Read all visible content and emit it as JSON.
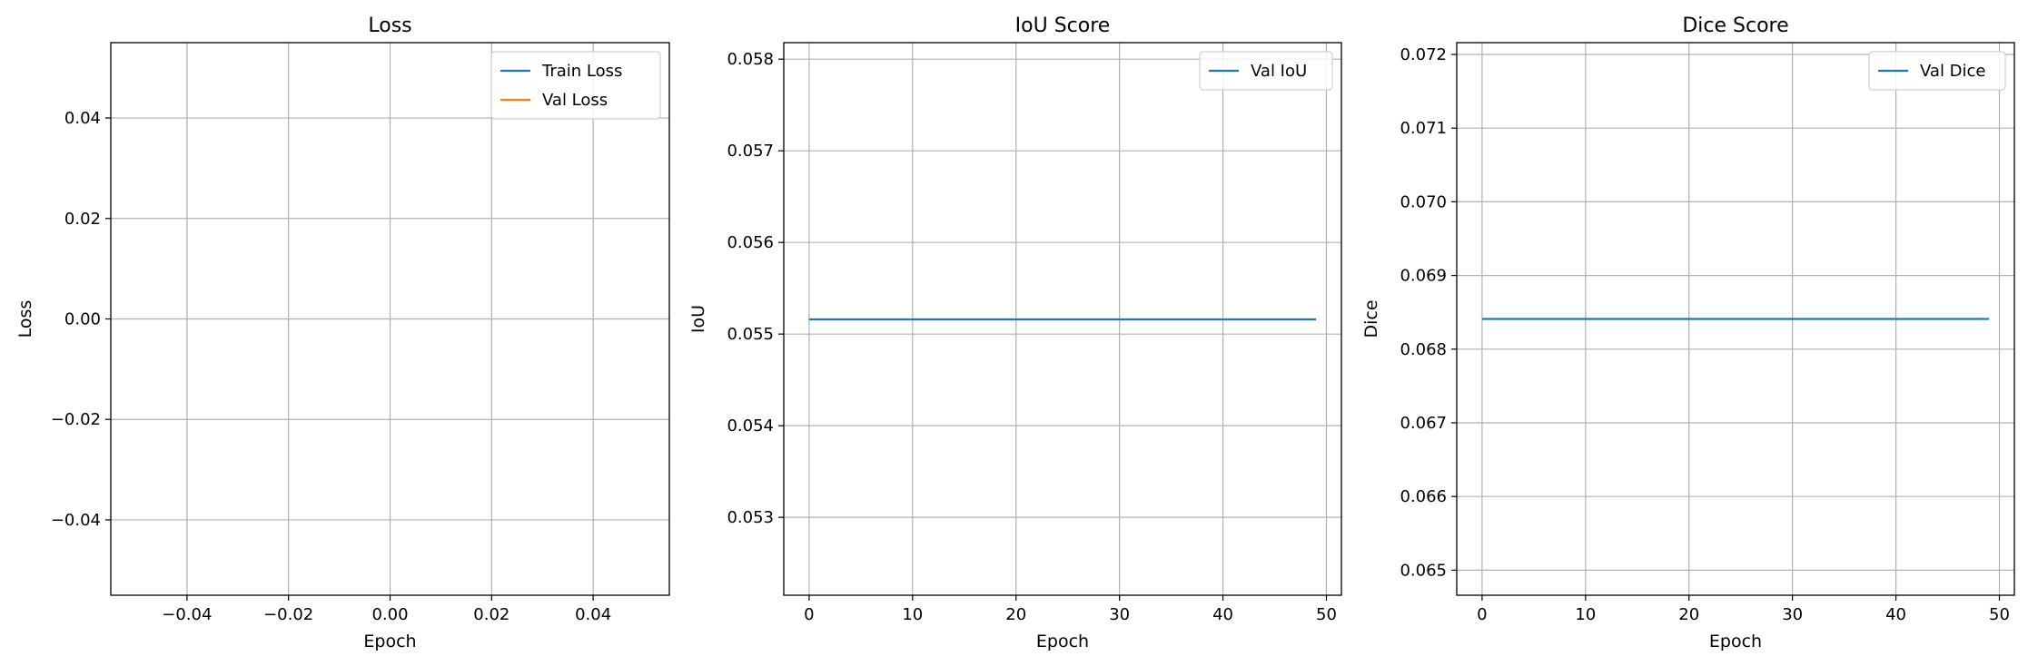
{
  "chart_data": [
    {
      "type": "line",
      "title": "Loss",
      "xlabel": "Epoch",
      "ylabel": "Loss",
      "xlim": [
        -0.055,
        0.055
      ],
      "ylim": [
        -0.055,
        0.055
      ],
      "xticks": [
        -0.04,
        -0.02,
        0.0,
        0.02,
        0.04
      ],
      "xtick_labels": [
        "−0.04",
        "−0.02",
        "0.00",
        "0.02",
        "0.04"
      ],
      "yticks": [
        -0.04,
        -0.02,
        0.0,
        0.02,
        0.04
      ],
      "ytick_labels": [
        "−0.04",
        "−0.02",
        "0.00",
        "0.02",
        "0.04"
      ],
      "grid": true,
      "legend_position": "top-right",
      "series": [
        {
          "name": "Train Loss",
          "color": "#1f77b4",
          "x": [],
          "y": []
        },
        {
          "name": "Val Loss",
          "color": "#ff7f0e",
          "x": [],
          "y": []
        }
      ]
    },
    {
      "type": "line",
      "title": "IoU Score",
      "xlabel": "Epoch",
      "ylabel": "IoU",
      "xlim": [
        -2.45,
        51.45
      ],
      "ylim": [
        0.05215,
        0.05818
      ],
      "xticks": [
        0,
        10,
        20,
        30,
        40,
        50
      ],
      "xtick_labels": [
        "0",
        "10",
        "20",
        "30",
        "40",
        "50"
      ],
      "yticks": [
        0.053,
        0.054,
        0.055,
        0.056,
        0.057,
        0.058
      ],
      "ytick_labels": [
        "0.053",
        "0.054",
        "0.055",
        "0.056",
        "0.057",
        "0.058"
      ],
      "grid": true,
      "legend_position": "top-right",
      "series": [
        {
          "name": "Val IoU",
          "color": "#1f77b4",
          "x": [
            0,
            49
          ],
          "y": [
            0.05516,
            0.05516
          ]
        }
      ]
    },
    {
      "type": "line",
      "title": "Dice Score",
      "xlabel": "Epoch",
      "ylabel": "Dice",
      "xlim": [
        -2.45,
        51.45
      ],
      "ylim": [
        0.06466,
        0.07216
      ],
      "xticks": [
        0,
        10,
        20,
        30,
        40,
        50
      ],
      "xtick_labels": [
        "0",
        "10",
        "20",
        "30",
        "40",
        "50"
      ],
      "yticks": [
        0.065,
        0.066,
        0.067,
        0.068,
        0.069,
        0.07,
        0.071,
        0.072
      ],
      "ytick_labels": [
        "0.065",
        "0.066",
        "0.067",
        "0.068",
        "0.069",
        "0.070",
        "0.071",
        "0.072"
      ],
      "grid": true,
      "legend_position": "top-right",
      "series": [
        {
          "name": "Val Dice",
          "color": "#1f77b4",
          "x": [
            0,
            49
          ],
          "y": [
            0.06841,
            0.06841
          ]
        }
      ]
    }
  ]
}
